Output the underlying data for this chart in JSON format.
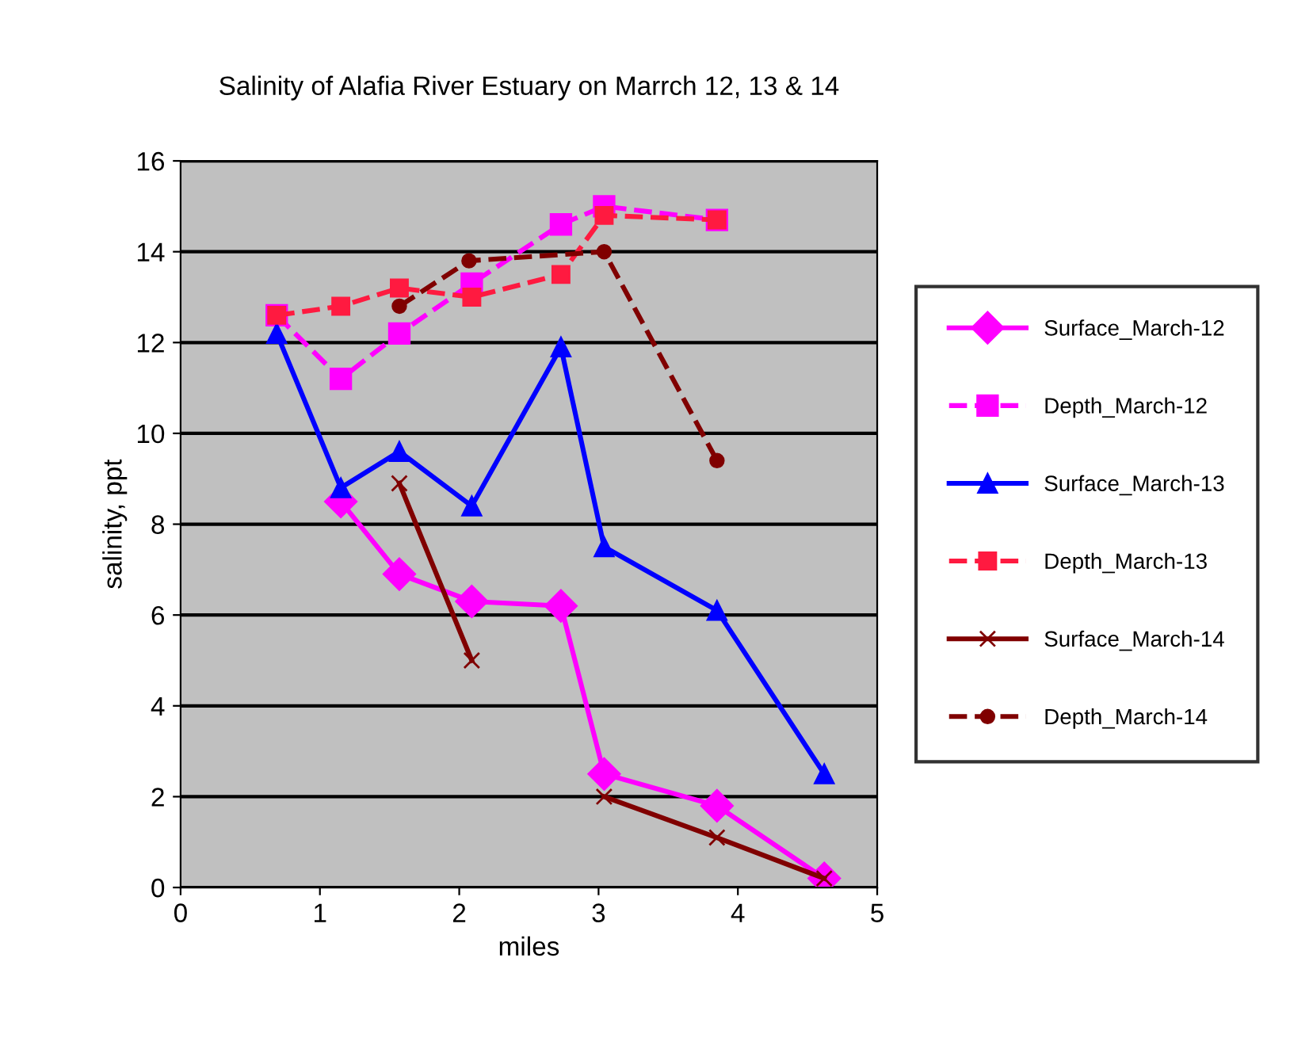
{
  "chart_data": {
    "type": "line",
    "title": "Salinity of Alafia River Estuary on Marrch 12, 13 & 14",
    "xlabel": "miles",
    "ylabel": "salinity, ppt",
    "x": [
      0.69,
      1.15,
      1.57,
      2.09,
      2.73,
      3.04,
      3.85,
      4.62
    ],
    "series": [
      {
        "name": "Surface_March-12",
        "color": "#ff00ff",
        "marker": "diamond",
        "line_style": "solid",
        "values": [
          null,
          8.5,
          6.9,
          6.3,
          6.2,
          2.5,
          1.8,
          0.2
        ]
      },
      {
        "name": "Depth_March-12",
        "color": "#ff00ff",
        "marker": "square",
        "line_style": "dashed",
        "values": [
          12.6,
          11.2,
          12.2,
          13.3,
          14.6,
          15.0,
          14.7,
          null
        ]
      },
      {
        "name": "Surface_March-13",
        "color": "#0000ff",
        "marker": "triangle",
        "line_style": "solid",
        "values": [
          12.2,
          8.8,
          9.6,
          8.4,
          11.9,
          7.5,
          6.1,
          2.5
        ]
      },
      {
        "name": "Depth_March-13",
        "color": "#ff1a40",
        "marker": "square",
        "line_style": "dashed",
        "values": [
          12.6,
          12.8,
          13.2,
          13.0,
          13.5,
          14.8,
          14.7,
          null
        ]
      },
      {
        "name": "Surface_March-14",
        "color": "#800000",
        "marker": "cross",
        "line_style": "solid",
        "values": [
          null,
          null,
          8.9,
          5.0,
          null,
          2.0,
          1.1,
          0.2
        ]
      },
      {
        "name": "Depth_March-14",
        "color": "#800000",
        "marker": "circle",
        "line_style": "dashed",
        "x": [
          1.57,
          2.07,
          3.04,
          3.85
        ],
        "values": [
          12.8,
          13.8,
          14.0,
          9.4
        ]
      }
    ],
    "xlim": [
      0,
      5
    ],
    "xticks": [
      0,
      1,
      2,
      3,
      4,
      5
    ],
    "ylim": [
      0,
      16
    ],
    "yticks": [
      0,
      2,
      4,
      6,
      8,
      10,
      12,
      14,
      16
    ],
    "grid": "y",
    "legend": "right"
  }
}
